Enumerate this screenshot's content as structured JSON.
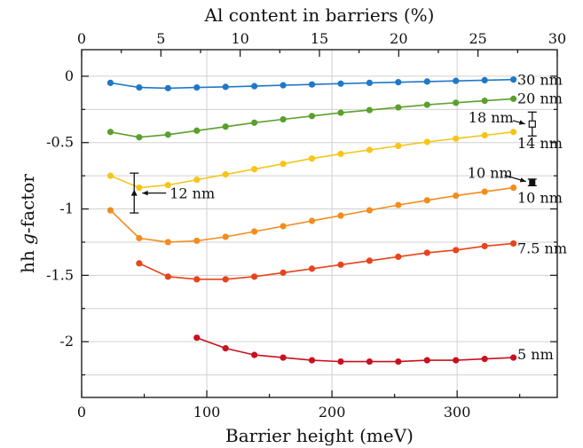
{
  "chart_data": {
    "type": "line",
    "xlabel": "Barrier height (meV)",
    "ylabel": "hh g-factor",
    "ylabel_plain": "hh ",
    "ylabel_italic": "g",
    "ylabel_rest": "-factor",
    "top_xlabel": "Al content in barriers (%)",
    "xlim": [
      0,
      380
    ],
    "ylim": [
      -2.42,
      0.2
    ],
    "top_xlim": [
      0,
      30
    ],
    "x_ticks": [
      0,
      100,
      200,
      300
    ],
    "x_tick_labels": [
      "0",
      "100",
      "200",
      "300"
    ],
    "y_ticks": [
      0,
      -0.5,
      -1,
      -1.5,
      -2
    ],
    "y_tick_labels": [
      "0",
      "-0.5",
      "-1",
      "-1.5",
      "-2"
    ],
    "top_ticks": [
      0,
      5,
      10,
      15,
      20,
      25,
      30
    ],
    "top_tick_labels": [
      "0",
      "5",
      "10",
      "15",
      "20",
      "25",
      "30"
    ],
    "grid": true,
    "series": [
      {
        "name": "30 nm",
        "color": "#1f78c8",
        "x": [
          23,
          46,
          69,
          92,
          115,
          138,
          161,
          184,
          207,
          230,
          253,
          276,
          299,
          322,
          345
        ],
        "y": [
          -0.05,
          -0.085,
          -0.09,
          -0.085,
          -0.08,
          -0.075,
          -0.068,
          -0.062,
          -0.056,
          -0.05,
          -0.045,
          -0.04,
          -0.035,
          -0.03,
          -0.025
        ]
      },
      {
        "name": "20 nm",
        "color": "#5aa02c",
        "x": [
          23,
          46,
          69,
          92,
          115,
          138,
          161,
          184,
          207,
          230,
          253,
          276,
          299,
          322,
          345
        ],
        "y": [
          -0.42,
          -0.46,
          -0.44,
          -0.41,
          -0.38,
          -0.35,
          -0.325,
          -0.3,
          -0.275,
          -0.255,
          -0.235,
          -0.215,
          -0.2,
          -0.185,
          -0.17
        ]
      },
      {
        "name": "14 nm",
        "color": "#f5c518",
        "x": [
          23,
          46,
          69,
          92,
          115,
          138,
          161,
          184,
          207,
          230,
          253,
          276,
          299,
          322,
          345
        ],
        "y": [
          -0.75,
          -0.84,
          -0.82,
          -0.78,
          -0.74,
          -0.7,
          -0.66,
          -0.62,
          -0.585,
          -0.555,
          -0.525,
          -0.495,
          -0.47,
          -0.445,
          -0.42
        ]
      },
      {
        "name": "10 nm",
        "color": "#f28c1e",
        "x": [
          23,
          46,
          69,
          92,
          115,
          138,
          161,
          184,
          207,
          230,
          253,
          276,
          299,
          322,
          345
        ],
        "y": [
          -1.01,
          -1.22,
          -1.25,
          -1.24,
          -1.21,
          -1.17,
          -1.13,
          -1.09,
          -1.05,
          -1.01,
          -0.97,
          -0.935,
          -0.9,
          -0.87,
          -0.84
        ]
      },
      {
        "name": "7.5 nm",
        "color": "#e8431c",
        "x": [
          46,
          69,
          92,
          115,
          138,
          161,
          184,
          207,
          230,
          253,
          276,
          299,
          322,
          345
        ],
        "y": [
          -1.41,
          -1.51,
          -1.53,
          -1.53,
          -1.51,
          -1.48,
          -1.45,
          -1.42,
          -1.39,
          -1.36,
          -1.33,
          -1.31,
          -1.28,
          -1.26
        ]
      },
      {
        "name": "5 nm",
        "color": "#c8101e",
        "x": [
          92,
          115,
          138,
          161,
          184,
          207,
          230,
          253,
          276,
          299,
          322,
          345
        ],
        "y": [
          -1.97,
          -2.05,
          -2.1,
          -2.12,
          -2.14,
          -2.15,
          -2.15,
          -2.15,
          -2.14,
          -2.14,
          -2.13,
          -2.12
        ]
      }
    ],
    "series_label_positions": [
      {
        "name": "30 nm",
        "y": -0.03
      },
      {
        "name": "20 nm",
        "y": -0.17
      },
      {
        "name": "14 nm",
        "y": -0.51
      },
      {
        "name": "10 nm",
        "y": -0.92
      },
      {
        "name": "7.5 nm",
        "y": -1.3
      },
      {
        "name": "5 nm",
        "y": -2.1
      }
    ],
    "experimental": [
      {
        "label": "12 nm",
        "x": 42,
        "y": -0.88,
        "yerr": 0.15,
        "marker": "filled-triangle"
      },
      {
        "label": "18 nm",
        "x": 360,
        "y": -0.36,
        "yerr": 0.09,
        "marker": "open-square"
      },
      {
        "label": "10 nm",
        "x": 360,
        "y": -0.8,
        "yerr": 0.025,
        "marker": "filled-square"
      }
    ]
  }
}
